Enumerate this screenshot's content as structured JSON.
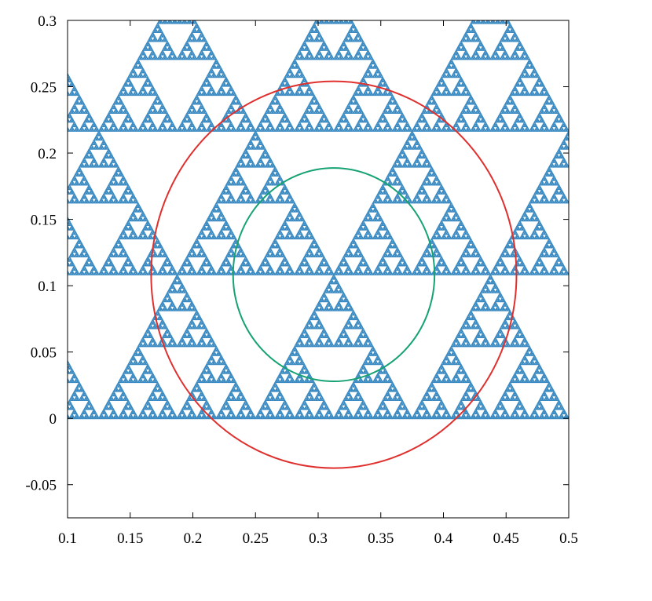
{
  "chart_data": {
    "type": "scatter",
    "title": "",
    "xlabel": "",
    "ylabel": "",
    "xlim": [
      0.1,
      0.5
    ],
    "ylim": [
      -0.075,
      0.3
    ],
    "x_ticks": [
      0.1,
      0.15,
      0.2,
      0.25,
      0.3,
      0.35,
      0.4,
      0.45,
      0.5
    ],
    "x_tick_labels": [
      "0.1",
      "0.15",
      "0.2",
      "0.25",
      "0.3",
      "0.35",
      "0.4",
      "0.45",
      "0.5"
    ],
    "y_ticks": [
      -0.05,
      0,
      0.05,
      0.1,
      0.15,
      0.2,
      0.25,
      0.3
    ],
    "y_tick_labels": [
      "-0.05",
      "0",
      "0.05",
      "0.1",
      "0.15",
      "0.2",
      "0.25",
      "0.3"
    ],
    "grid": false,
    "legend": "none",
    "series": [
      {
        "kind": "sierpinski-gasket",
        "color": "#3b8bc2",
        "base_y": 0,
        "top_rows": [
          {
            "apexes": [
              [
                0.195,
                0.3
              ],
              [
                0.32,
                0.3
              ]
            ]
          }
        ],
        "triangles_side_0_25": [
          {
            "apex": [
              0.125,
              0.2165
            ]
          },
          {
            "apex": [
              0.375,
              0.2165
            ]
          },
          {
            "apex": [
              0.0,
              0.2165
            ]
          },
          {
            "apex": [
              0.25,
              0.2165
            ]
          },
          {
            "apex": [
              0.5,
              0.2165
            ]
          }
        ]
      },
      {
        "kind": "circle",
        "color": "#e0302e",
        "center": [
          0.3125,
          0.1083
        ],
        "radius": 0.1458
      },
      {
        "kind": "circle",
        "color": "#16a274",
        "center": [
          0.3125,
          0.1083
        ],
        "radius": 0.0804
      }
    ],
    "colors": {
      "gasket": "#3b8bc2",
      "outer_circle": "#e0302e",
      "inner_circle": "#16a274",
      "axes": "#000000"
    }
  }
}
